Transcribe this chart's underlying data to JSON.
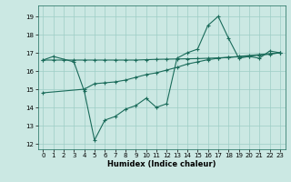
{
  "xlabel": "Humidex (Indice chaleur)",
  "background_color": "#cbe8e3",
  "grid_color": "#9ecdc6",
  "line_color": "#1a6b5a",
  "xlim": [
    -0.5,
    23.5
  ],
  "ylim": [
    11.7,
    19.6
  ],
  "yticks": [
    12,
    13,
    14,
    15,
    16,
    17,
    18,
    19
  ],
  "xticks": [
    0,
    1,
    2,
    3,
    4,
    5,
    6,
    7,
    8,
    9,
    10,
    11,
    12,
    13,
    14,
    15,
    16,
    17,
    18,
    19,
    20,
    21,
    22,
    23
  ],
  "line1_x": [
    0,
    1,
    2,
    3,
    4,
    5,
    6,
    7,
    8,
    9,
    10,
    11,
    12,
    13,
    14,
    15,
    16,
    17,
    18,
    19,
    20,
    21,
    22,
    23
  ],
  "line1_y": [
    16.6,
    16.6,
    16.6,
    16.6,
    16.6,
    16.6,
    16.6,
    16.6,
    16.6,
    16.6,
    16.62,
    16.64,
    16.65,
    16.66,
    16.67,
    16.68,
    16.7,
    16.72,
    16.75,
    16.78,
    16.82,
    16.87,
    16.92,
    17.0
  ],
  "line2_x": [
    0,
    1,
    3,
    4,
    5,
    6,
    7,
    8,
    9,
    10,
    11,
    12,
    13,
    14,
    15,
    16,
    17,
    18,
    19,
    20,
    21,
    22,
    23
  ],
  "line2_y": [
    16.6,
    16.8,
    16.5,
    14.9,
    12.2,
    13.3,
    13.5,
    13.9,
    14.1,
    14.5,
    14.0,
    14.2,
    16.7,
    17.0,
    17.2,
    18.5,
    19.0,
    17.8,
    16.7,
    16.8,
    16.7,
    17.1,
    17.0
  ],
  "line3_x": [
    0,
    4,
    5,
    6,
    7,
    8,
    9,
    10,
    11,
    12,
    13,
    14,
    15,
    16,
    17,
    18,
    19,
    20,
    21,
    22,
    23
  ],
  "line3_y": [
    14.8,
    15.0,
    15.3,
    15.35,
    15.4,
    15.5,
    15.65,
    15.8,
    15.9,
    16.05,
    16.2,
    16.38,
    16.5,
    16.62,
    16.7,
    16.75,
    16.8,
    16.85,
    16.9,
    16.95,
    17.0
  ]
}
